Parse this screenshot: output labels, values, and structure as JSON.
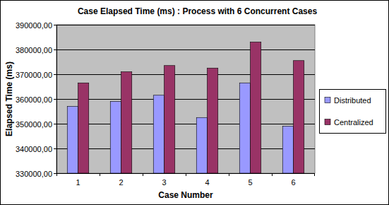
{
  "chart_data": {
    "type": "bar",
    "title": "Case Elapsed Time (ms) : Process with 6 Concurrent Cases",
    "x_label": "Case Number",
    "y_label": "Elapsed Time (ms)",
    "categories": [
      "1",
      "2",
      "3",
      "4",
      "5",
      "6"
    ],
    "series": [
      {
        "name": "Distributed",
        "color": "#9999ff",
        "values": [
          357000,
          359000,
          361500,
          352500,
          366500,
          349000
        ]
      },
      {
        "name": "Centralized",
        "color": "#993366",
        "values": [
          366500,
          371000,
          373500,
          372500,
          383000,
          375500
        ]
      }
    ],
    "ylim": [
      330000,
      390000
    ],
    "yticks": [
      {
        "value": 330000,
        "label": "330000,00"
      },
      {
        "value": 340000,
        "label": "340000,00"
      },
      {
        "value": 350000,
        "label": "350000,00"
      },
      {
        "value": 360000,
        "label": "360000,00"
      },
      {
        "value": 370000,
        "label": "370000,00"
      },
      {
        "value": 380000,
        "label": "380000,00"
      },
      {
        "value": 390000,
        "label": "390000,00"
      }
    ],
    "grid": true,
    "legend": "right"
  }
}
